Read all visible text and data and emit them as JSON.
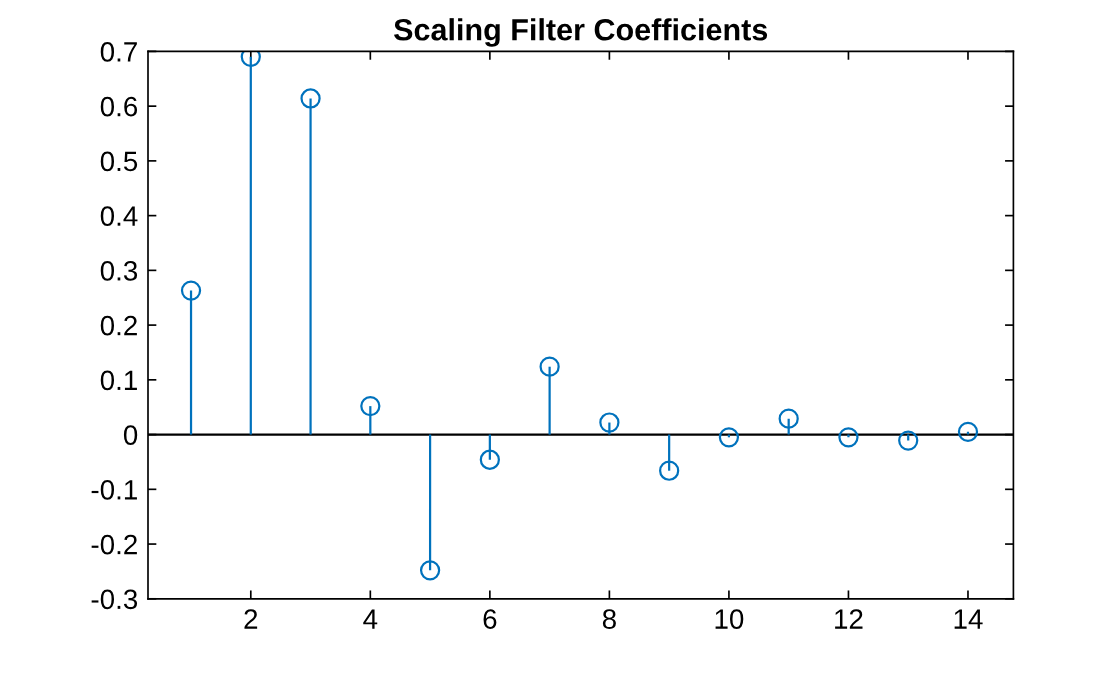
{
  "chart_data": {
    "type": "lollipop",
    "title": "Scaling Filter Coefficients",
    "x": [
      1,
      2,
      3,
      4,
      5,
      6,
      7,
      8,
      9,
      10,
      11,
      12,
      13,
      14
    ],
    "values": [
      0.263,
      0.69,
      0.614,
      0.052,
      -0.248,
      -0.046,
      0.124,
      0.022,
      -0.066,
      -0.005,
      0.029,
      -0.005,
      -0.011,
      0.005
    ],
    "color": "#0072bd",
    "marker": "circle",
    "xlim": [
      0.28,
      14.76
    ],
    "xticks": [
      2,
      4,
      6,
      8,
      10,
      12,
      14
    ],
    "ylim": [
      -0.3,
      0.7
    ],
    "yticks": [
      -0.3,
      -0.2,
      -0.1,
      0,
      0.1,
      0.2,
      0.3,
      0.4,
      0.5,
      0.6,
      0.7
    ],
    "ref_lines": [
      {
        "axis": "y",
        "value": 0,
        "color": "#000000"
      }
    ],
    "grid": false
  }
}
